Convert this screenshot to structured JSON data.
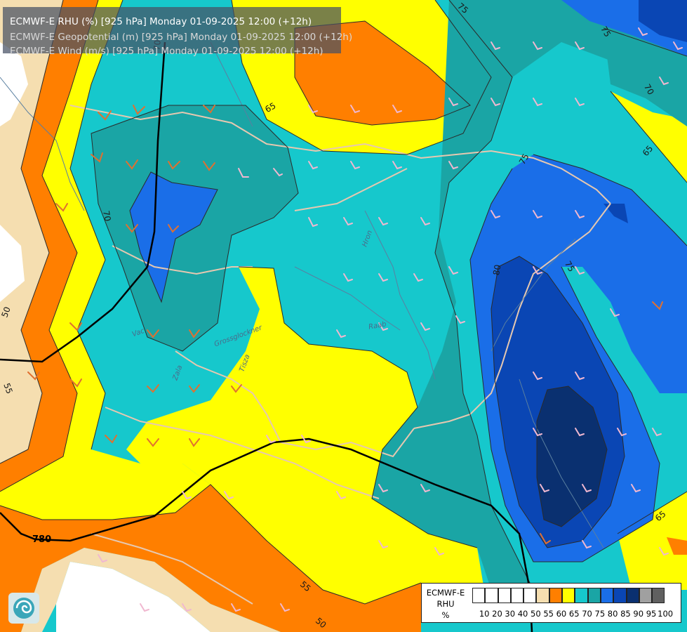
{
  "titles": {
    "line1": "ECMWF-E RHU (%) [925 hPa] Monday 01-09-2025 12:00 (+12h)",
    "line2": "ECMWF-E Geopotential (m) [925 hPa] Monday 01-09-2025 12:00 (+12h)",
    "line3": "ECMWF-E Wind (m/s) [925 hPa] Monday 01-09-2025 12:00 (+12h)"
  },
  "contour_labels": [
    "75",
    "75",
    "70",
    "65",
    "70",
    "65",
    "50",
    "55",
    "75",
    "75",
    "80",
    "65",
    "55",
    "50",
    "70",
    "780"
  ],
  "river_labels": [
    "Hron",
    "Raab",
    "Zala",
    "Grossglockner",
    "Tisza",
    "Vac"
  ],
  "legend": {
    "title_line1": "ECMWF-E",
    "title_line2": "RHU",
    "title_line3": "%",
    "ticks": [
      "10",
      "20",
      "30",
      "40",
      "50",
      "55",
      "60",
      "65",
      "70",
      "75",
      "80",
      "85",
      "90",
      "95",
      "100"
    ],
    "colors": [
      "#ffffff",
      "#ffffff",
      "#ffffff",
      "#ffffff",
      "#ffffff",
      "#f5deb0",
      "#ff7f00",
      "#ffff00",
      "#16c8cc",
      "#1aa5a5",
      "#1a6ee8",
      "#0a46b4",
      "#0a3070",
      "#a0a0a0",
      "#606060"
    ]
  },
  "colors": {
    "rhu_50": "#f5deb0",
    "rhu_55": "#ff7f00",
    "rhu_60": "#ffff00",
    "rhu_65": "#16c8cc",
    "rhu_70": "#1aa5a5",
    "rhu_75": "#1a6ee8",
    "rhu_80": "#0a46b4",
    "rhu_85": "#0a3070",
    "white": "#ffffff"
  }
}
